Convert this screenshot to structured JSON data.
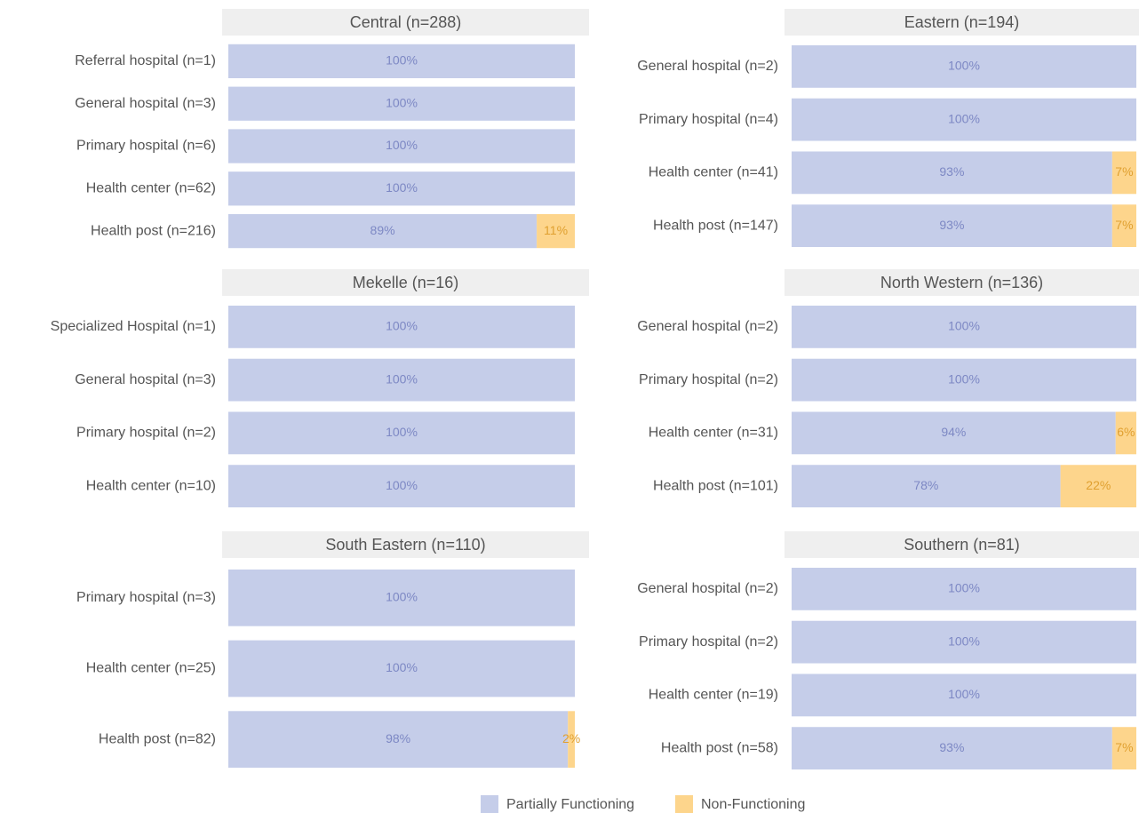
{
  "chart_data": [
    {
      "type": "bar",
      "title": "Central (n=288)",
      "xlim": [
        0,
        100
      ],
      "categories": [
        "Referral hospital (n=1)",
        "General hospital (n=3)",
        "Primary hospital (n=6)",
        "Health center (n=62)",
        "Health post (n=216)"
      ],
      "series": [
        {
          "name": "Partially Functioning",
          "color": "#c5cde9",
          "values": [
            100,
            100,
            100,
            100,
            89
          ],
          "value_labels": [
            "100%",
            "100%",
            "100%",
            "100%",
            "89%"
          ]
        },
        {
          "name": "Non-Functioning",
          "color": "#fdd58c",
          "values": [
            0,
            0,
            0,
            0,
            11
          ],
          "value_labels": [
            null,
            null,
            null,
            null,
            "11%"
          ]
        }
      ]
    },
    {
      "type": "bar",
      "title": "Eastern (n=194)",
      "xlim": [
        0,
        100
      ],
      "categories": [
        "General hospital (n=2)",
        "Primary hospital (n=4)",
        "Health center (n=41)",
        "Health post (n=147)"
      ],
      "series": [
        {
          "name": "Partially Functioning",
          "color": "#c5cde9",
          "values": [
            100,
            100,
            93,
            93
          ],
          "value_labels": [
            "100%",
            "100%",
            "93%",
            "93%"
          ]
        },
        {
          "name": "Non-Functioning",
          "color": "#fdd58c",
          "values": [
            0,
            0,
            7,
            7
          ],
          "value_labels": [
            null,
            null,
            "7%",
            "7%"
          ]
        }
      ]
    },
    {
      "type": "bar",
      "title": "Mekelle (n=16)",
      "xlim": [
        0,
        100
      ],
      "categories": [
        "Specialized Hospital (n=1)",
        "General hospital (n=3)",
        "Primary hospital (n=2)",
        "Health center (n=10)"
      ],
      "series": [
        {
          "name": "Partially Functioning",
          "color": "#c5cde9",
          "values": [
            100,
            100,
            100,
            100
          ],
          "value_labels": [
            "100%",
            "100%",
            "100%",
            "100%"
          ]
        },
        {
          "name": "Non-Functioning",
          "color": "#fdd58c",
          "values": [
            0,
            0,
            0,
            0
          ],
          "value_labels": [
            null,
            null,
            null,
            null
          ]
        }
      ]
    },
    {
      "type": "bar",
      "title": "North Western (n=136)",
      "xlim": [
        0,
        100
      ],
      "categories": [
        "General hospital (n=2)",
        "Primary hospital (n=2)",
        "Health center (n=31)",
        "Health post (n=101)"
      ],
      "series": [
        {
          "name": "Partially Functioning",
          "color": "#c5cde9",
          "values": [
            100,
            100,
            94,
            78
          ],
          "value_labels": [
            "100%",
            "100%",
            "94%",
            "78%"
          ]
        },
        {
          "name": "Non-Functioning",
          "color": "#fdd58c",
          "values": [
            0,
            0,
            6,
            22
          ],
          "value_labels": [
            null,
            null,
            "6%",
            "22%"
          ]
        }
      ]
    },
    {
      "type": "bar",
      "title": "South Eastern (n=110)",
      "xlim": [
        0,
        100
      ],
      "categories": [
        "Primary hospital (n=3)",
        "Health center (n=25)",
        "Health post (n=82)"
      ],
      "series": [
        {
          "name": "Partially Functioning",
          "color": "#c5cde9",
          "values": [
            100,
            100,
            98
          ],
          "value_labels": [
            "100%",
            "100%",
            "98%"
          ]
        },
        {
          "name": "Non-Functioning",
          "color": "#fdd58c",
          "values": [
            0,
            0,
            2
          ],
          "value_labels": [
            null,
            null,
            "2%"
          ]
        }
      ]
    },
    {
      "type": "bar",
      "title": "Southern (n=81)",
      "xlim": [
        0,
        100
      ],
      "categories": [
        "General hospital (n=2)",
        "Primary hospital (n=2)",
        "Health center (n=19)",
        "Health post (n=58)"
      ],
      "series": [
        {
          "name": "Partially Functioning",
          "color": "#c5cde9",
          "values": [
            100,
            100,
            100,
            93
          ],
          "value_labels": [
            "100%",
            "100%",
            "100%",
            "93%"
          ]
        },
        {
          "name": "Non-Functioning",
          "color": "#fdd58c",
          "values": [
            0,
            0,
            0,
            7
          ],
          "value_labels": [
            null,
            null,
            null,
            "7%"
          ]
        }
      ]
    }
  ]
}
